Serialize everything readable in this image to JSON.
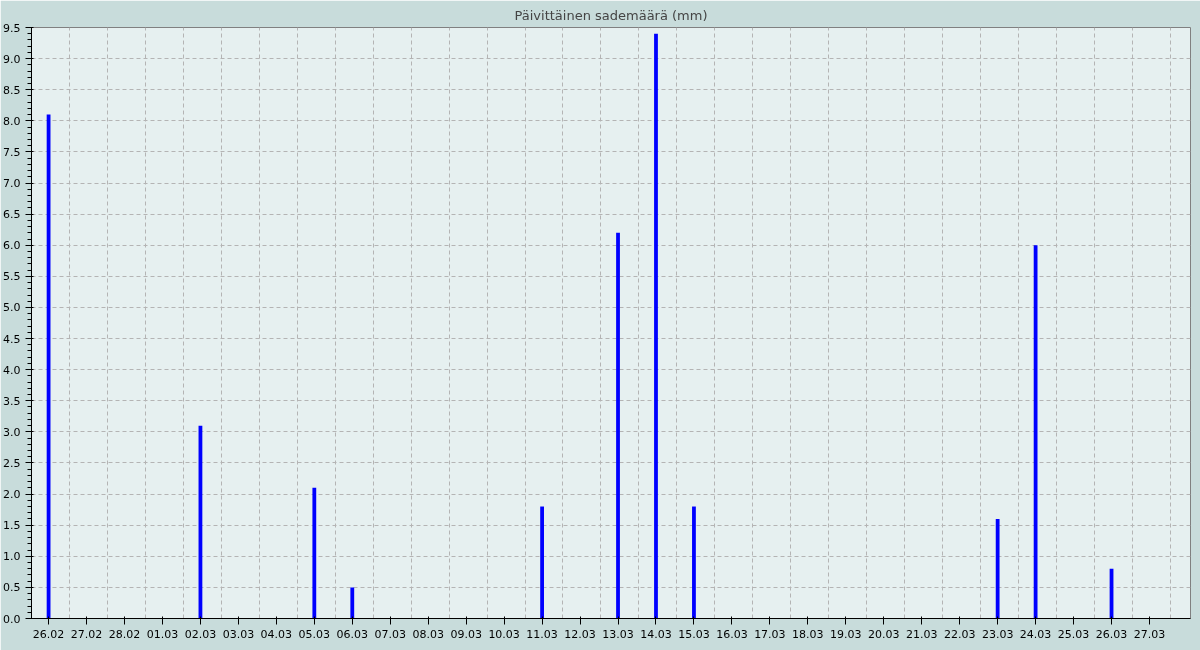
{
  "chart_data": {
    "type": "bar",
    "title": "Päivittäinen sademäärä (mm)",
    "categories": [
      "26.02",
      "27.02",
      "28.02",
      "01.03",
      "02.03",
      "03.03",
      "04.03",
      "05.03",
      "06.03",
      "07.03",
      "08.03",
      "09.03",
      "10.03",
      "11.03",
      "12.03",
      "13.03",
      "14.03",
      "15.03",
      "16.03",
      "17.03",
      "18.03",
      "19.03",
      "20.03",
      "21.03",
      "22.03",
      "23.03",
      "24.03",
      "25.03",
      "26.03",
      "27.03"
    ],
    "values": [
      8.1,
      0,
      0,
      0,
      3.1,
      0,
      0,
      2.1,
      0.5,
      0,
      0,
      0,
      0,
      1.8,
      0,
      6.2,
      9.4,
      1.8,
      0,
      0,
      0,
      0,
      0,
      0,
      0,
      1.6,
      6.0,
      0,
      0.8,
      0
    ],
    "color": "#0000ff",
    "ylim": [
      0,
      9.5
    ],
    "yticks": [
      {
        "value": 0,
        "label": "0.0"
      },
      {
        "value": 0.5,
        "label": "0.5"
      },
      {
        "value": 1,
        "label": "1.0"
      },
      {
        "value": 1.5,
        "label": "1.5"
      },
      {
        "value": 2,
        "label": "2.0"
      },
      {
        "value": 2.5,
        "label": "2.5"
      },
      {
        "value": 3,
        "label": "3.0"
      },
      {
        "value": 3.5,
        "label": "3.5"
      },
      {
        "value": 4,
        "label": "4.0"
      },
      {
        "value": 4.5,
        "label": "4.5"
      },
      {
        "value": 5,
        "label": "5.0"
      },
      {
        "value": 5.5,
        "label": "5.5"
      },
      {
        "value": 6,
        "label": "6.0"
      },
      {
        "value": 6.5,
        "label": "6.5"
      },
      {
        "value": 7,
        "label": "7.0"
      },
      {
        "value": 7.5,
        "label": "7.5"
      },
      {
        "value": 8,
        "label": "8.0"
      },
      {
        "value": 8.5,
        "label": "8.5"
      },
      {
        "value": 9,
        "label": "9.0"
      },
      {
        "value": 9.5,
        "label": "9.5"
      }
    ],
    "grid": true
  }
}
